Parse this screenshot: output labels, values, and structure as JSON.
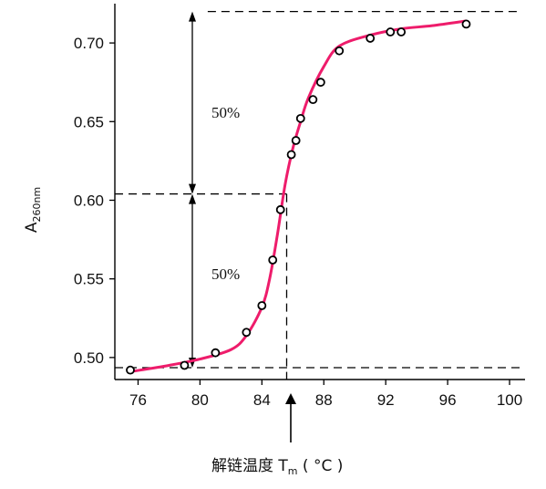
{
  "chart_data": {
    "type": "scatter",
    "x": [
      75.5,
      79,
      81,
      83,
      84,
      84.7,
      85.2,
      85.9,
      86.2,
      86.5,
      87.3,
      87.8,
      89,
      91,
      92.3,
      93,
      97.2
    ],
    "y": [
      0.492,
      0.495,
      0.503,
      0.516,
      0.533,
      0.562,
      0.594,
      0.629,
      0.638,
      0.652,
      0.664,
      0.675,
      0.695,
      0.703,
      0.707,
      0.707,
      0.712
    ],
    "fit_curve": {
      "x": [
        75.5,
        78,
        80,
        82,
        83,
        84,
        84.5,
        85,
        85.5,
        86,
        86.5,
        87,
        88,
        89,
        91,
        93,
        95,
        97.2
      ],
      "y": [
        0.491,
        0.495,
        0.499,
        0.505,
        0.514,
        0.532,
        0.55,
        0.578,
        0.61,
        0.633,
        0.65,
        0.665,
        0.685,
        0.698,
        0.705,
        0.709,
        0.711,
        0.714
      ]
    },
    "color": "#ee1c6b",
    "xlim": [
      74.5,
      101
    ],
    "ylim": [
      0.486,
      0.725
    ],
    "xticks": [
      76,
      80,
      84,
      88,
      92,
      96,
      100
    ],
    "yticks": [
      0.5,
      0.55,
      0.6,
      0.65,
      0.7
    ],
    "xtick_labels": [
      "76",
      "80",
      "84",
      "88",
      "92",
      "96",
      "100"
    ],
    "ytick_labels": [
      "0.50",
      "0.55",
      "0.60",
      "0.65",
      "0.70"
    ],
    "ylabel": {
      "main": "A",
      "sub": "260nm"
    },
    "xlabel": {
      "main": "解链温度 T",
      "sub": "m",
      "unit": " ( °C )"
    },
    "reference_lines": {
      "upper": 0.72,
      "middle": 0.604,
      "lower": 0.486,
      "tm": 85.6
    },
    "annotations": [
      "50%",
      "50%"
    ]
  }
}
